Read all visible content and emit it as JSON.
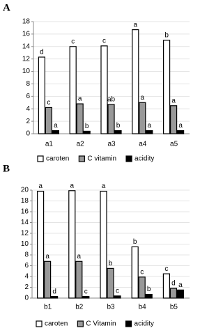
{
  "chart_data": [
    {
      "type": "bar",
      "panel": "A",
      "categories": [
        "a1",
        "a2",
        "a3",
        "a4",
        "a5"
      ],
      "series": [
        {
          "name": "caroten",
          "color": "#ffffff",
          "values": [
            12.3,
            14.0,
            14.1,
            16.7,
            15.0
          ],
          "letters": [
            "d",
            "c",
            "c",
            "a",
            "b"
          ]
        },
        {
          "name": "C vitamin",
          "color": "#999999",
          "values": [
            4.2,
            4.8,
            4.7,
            5.0,
            4.5
          ],
          "letters": [
            "c",
            "a",
            "ab",
            "a",
            "a"
          ]
        },
        {
          "name": "acidity",
          "color": "#000000",
          "values": [
            0.5,
            0.4,
            0.5,
            0.5,
            0.5
          ],
          "letters": [
            "a",
            "b",
            "b",
            "a",
            "a"
          ]
        }
      ],
      "ylim": [
        0,
        18
      ],
      "yticks": [
        0,
        2,
        4,
        6,
        8,
        10,
        12,
        14,
        16,
        18
      ],
      "grid": true,
      "legend": "bottom"
    },
    {
      "type": "bar",
      "panel": "B",
      "categories": [
        "b1",
        "b2",
        "b3",
        "b4",
        "b5"
      ],
      "series": [
        {
          "name": "caroten",
          "color": "#ffffff",
          "values": [
            19.8,
            19.9,
            19.8,
            9.5,
            4.5
          ],
          "letters": [
            "a",
            "a",
            "a",
            "b",
            "c"
          ]
        },
        {
          "name": "C Vitamin",
          "color": "#999999",
          "values": [
            6.8,
            6.8,
            5.5,
            3.9,
            1.8
          ],
          "letters": [
            "a",
            "a",
            "b",
            "c",
            "d"
          ]
        },
        {
          "name": "acidity",
          "color": "#000000",
          "values": [
            0.3,
            0.3,
            0.4,
            0.7,
            1.5
          ],
          "letters": [
            "d",
            "c",
            "c",
            "b",
            "a"
          ]
        }
      ],
      "ylim": [
        0,
        20
      ],
      "yticks": [
        0,
        2,
        4,
        6,
        8,
        10,
        12,
        14,
        16,
        18,
        20
      ],
      "grid": true,
      "legend": "bottom"
    }
  ]
}
